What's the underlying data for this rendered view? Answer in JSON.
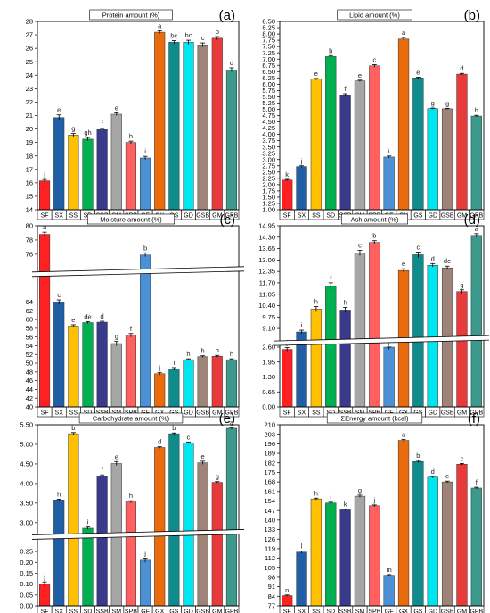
{
  "figure": {
    "categories": [
      "SF",
      "SX",
      "SS",
      "SD",
      "SSB",
      "SM",
      "SPB",
      "GF",
      "GX",
      "GS",
      "GD",
      "GSB",
      "GM",
      "GPB"
    ],
    "bar_colors": [
      "#ff2121",
      "#1f5fa6",
      "#ffc000",
      "#00b050",
      "#3a3a8c",
      "#a6a6a6",
      "#ff6161",
      "#4c90d6",
      "#e96b0c",
      "#0e8b8b",
      "#00e6f0",
      "#9e8478",
      "#e83a3a",
      "#3c9a8c"
    ]
  },
  "chart_data": [
    {
      "type": "bar",
      "panel_label": "(a)",
      "title": "Protein amount (%)",
      "categories": [
        "SF",
        "SX",
        "SS",
        "SD",
        "SSB",
        "SM",
        "SPB",
        "GF",
        "GX",
        "GS",
        "GD",
        "GSB",
        "GM",
        "GPB"
      ],
      "values": [
        16.15,
        20.85,
        19.55,
        19.25,
        19.95,
        21.1,
        19.0,
        17.85,
        27.2,
        26.45,
        26.45,
        26.25,
        26.75,
        24.4
      ],
      "errors": [
        0.1,
        0.2,
        0.12,
        0.12,
        0.08,
        0.1,
        0.1,
        0.12,
        0.1,
        0.12,
        0.15,
        0.15,
        0.12,
        0.15
      ],
      "letters": [
        "j",
        "e",
        "g",
        "gh",
        "f",
        "e",
        "h",
        "i",
        "a",
        "bc",
        "bc",
        "c",
        "b",
        "d"
      ],
      "ylim": [
        14,
        28
      ],
      "yticks": [
        "14",
        "15",
        "16",
        "17",
        "18",
        "19",
        "20",
        "21",
        "22",
        "23",
        "24",
        "25",
        "26",
        "27",
        "28"
      ]
    },
    {
      "type": "bar",
      "panel_label": "(b)",
      "title": "Lipid amount (%)",
      "categories": [
        "SF",
        "SX",
        "SS",
        "SD",
        "SSB",
        "SM",
        "SPB",
        "GF",
        "GX",
        "GS",
        "GD",
        "GSB",
        "GM",
        "GPB"
      ],
      "values": [
        2.18,
        2.72,
        6.2,
        7.1,
        5.57,
        6.13,
        6.73,
        3.1,
        7.8,
        6.25,
        5.03,
        5.02,
        6.4,
        4.73
      ],
      "errors": [
        0.03,
        0.03,
        0.03,
        0.04,
        0.05,
        0.03,
        0.05,
        0.04,
        0.06,
        0.03,
        0.02,
        0.02,
        0.03,
        0.03
      ],
      "letters": [
        "k",
        "j",
        "e",
        "b",
        "f",
        "e",
        "c",
        "i",
        "a",
        "e",
        "g",
        "g",
        "d",
        "h"
      ],
      "ylim": [
        1.0,
        8.5
      ],
      "yticks": [
        "1.00",
        "1.25",
        "1.50",
        "1.75",
        "2.00",
        "2.25",
        "2.50",
        "2.75",
        "3.00",
        "3.25",
        "3.50",
        "3.75",
        "4.00",
        "4.25",
        "4.50",
        "4.75",
        "5.00",
        "5.25",
        "5.50",
        "5.75",
        "6.00",
        "6.25",
        "6.50",
        "6.75",
        "7.00",
        "7.25",
        "7.50",
        "7.75",
        "8.00",
        "8.25",
        "8.50"
      ]
    },
    {
      "type": "bar",
      "panel_label": "(c)",
      "title": "Moisture amount (%)",
      "categories": [
        "SF",
        "SX",
        "SS",
        "SD",
        "SSB",
        "SM",
        "SPB",
        "GF",
        "GX",
        "GS",
        "GD",
        "GSB",
        "GM",
        "GPB"
      ],
      "values": [
        78.8,
        64.0,
        58.5,
        59.3,
        59.4,
        54.5,
        56.4,
        75.8,
        47.6,
        48.7,
        50.8,
        51.5,
        51.6,
        50.8
      ],
      "errors": [
        0.3,
        0.5,
        0.3,
        0.2,
        0.2,
        0.5,
        0.4,
        0.4,
        0.3,
        0.3,
        0.2,
        0.2,
        0.2,
        0.2
      ],
      "letters": [
        "a",
        "c",
        "e",
        "de",
        "d",
        "g",
        "f",
        "b",
        "j",
        "i",
        "h",
        "h",
        "h",
        "h"
      ],
      "axis_break": [
        66,
        76
      ],
      "ylim": [
        40,
        80
      ],
      "yticks": [
        "40",
        "42",
        "44",
        "46",
        "48",
        "50",
        "52",
        "54",
        "56",
        "58",
        "60",
        "62",
        "64",
        "76",
        "78",
        "80"
      ]
    },
    {
      "type": "bar",
      "panel_label": "(d)",
      "title": "Ash amount (%)",
      "categories": [
        "SF",
        "SX",
        "SS",
        "SD",
        "SSB",
        "SM",
        "SPB",
        "GF",
        "GX",
        "GS",
        "GD",
        "GSB",
        "GM",
        "GPB"
      ],
      "values": [
        2.5,
        8.9,
        10.2,
        11.5,
        10.15,
        13.4,
        14.0,
        2.6,
        12.4,
        13.3,
        12.7,
        12.55,
        11.2,
        14.4
      ],
      "errors": [
        0.08,
        0.1,
        0.15,
        0.2,
        0.15,
        0.15,
        0.1,
        0.1,
        0.1,
        0.15,
        0.1,
        0.1,
        0.1,
        0.1
      ],
      "letters": [
        "j",
        "i",
        "h",
        "f",
        "h",
        "c",
        "b",
        "j",
        "e",
        "c",
        "d",
        "de",
        "g",
        "a"
      ],
      "axis_break": [
        2.6,
        8.5
      ],
      "ylim": [
        0.0,
        14.95
      ],
      "yticks": [
        "0.00",
        "0.65",
        "1.30",
        "1.95",
        "2.60",
        "9.10",
        "9.75",
        "10.40",
        "11.05",
        "11.70",
        "12.35",
        "13.00",
        "13.65",
        "14.30",
        "14.95"
      ]
    },
    {
      "type": "bar",
      "panel_label": "(e)",
      "title": "Carbohydrate amount (%)",
      "categories": [
        "SF",
        "SX",
        "SS",
        "SD",
        "SSB",
        "SM",
        "SPB",
        "GF",
        "GX",
        "GS",
        "GD",
        "GSB",
        "GM",
        "GPB"
      ],
      "values": [
        0.1,
        3.58,
        5.27,
        2.86,
        4.19,
        4.51,
        3.53,
        0.21,
        4.92,
        5.27,
        5.04,
        4.53,
        4.03,
        5.41
      ],
      "errors": [
        0.01,
        0.02,
        0.03,
        0.03,
        0.03,
        0.05,
        0.03,
        0.01,
        0.02,
        0.02,
        0.02,
        0.04,
        0.02,
        0.02
      ],
      "letters": [
        "j",
        "h",
        "b",
        "i",
        "f",
        "e",
        "h",
        "j",
        "d",
        "b",
        "c",
        "e",
        "g",
        "a"
      ],
      "axis_break": [
        0.3,
        2.75
      ],
      "ylim": [
        0.0,
        5.5
      ],
      "yticks": [
        "0.00",
        "0.05",
        "0.10",
        "0.15",
        "0.20",
        "0.25",
        "3.00",
        "3.50",
        "4.00",
        "4.50",
        "5.00",
        "5.50"
      ]
    },
    {
      "type": "bar",
      "panel_label": "(f)",
      "title": "ΣEnergy amount (kcal)",
      "categories": [
        "SF",
        "SX",
        "SS",
        "SD",
        "SSB",
        "SM",
        "SPB",
        "GF",
        "GX",
        "GS",
        "GD",
        "GSB",
        "GM",
        "GPB"
      ],
      "values": [
        84.5,
        116.5,
        155.5,
        152.5,
        147.5,
        157.5,
        150.5,
        99.5,
        198.5,
        183.0,
        171.5,
        168.0,
        181.0,
        163.5
      ],
      "errors": [
        0.5,
        0.8,
        0.6,
        0.6,
        0.6,
        0.8,
        0.6,
        0.5,
        0.8,
        0.8,
        0.6,
        0.6,
        0.6,
        0.6
      ],
      "letters": [
        "n",
        "l",
        "h",
        "i",
        "k",
        "g",
        "j",
        "m",
        "a",
        "b",
        "d",
        "e",
        "c",
        "f"
      ],
      "ylim": [
        77,
        210
      ],
      "yticks": [
        "77",
        "84",
        "91",
        "98",
        "105",
        "112",
        "119",
        "126",
        "133",
        "140",
        "147",
        "154",
        "161",
        "168",
        "175",
        "182",
        "189",
        "196",
        "203",
        "210"
      ]
    }
  ]
}
